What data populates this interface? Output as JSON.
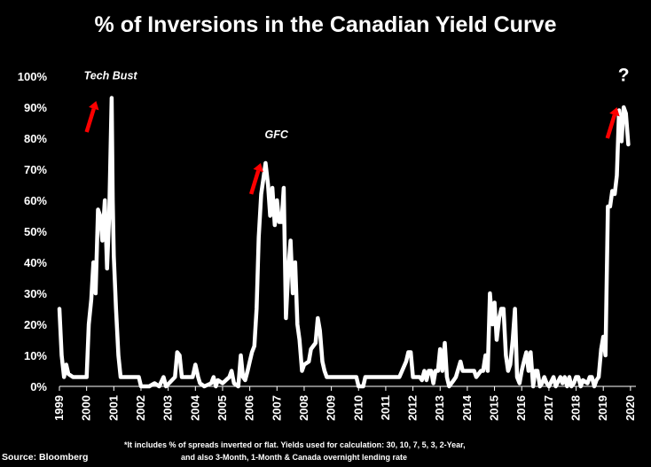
{
  "chart_data": {
    "type": "line",
    "title": "% of Inversions in the Canadian Yield Curve",
    "xlabel": "",
    "ylabel": "",
    "xlim": [
      1999,
      2020.2
    ],
    "ylim": [
      0,
      100
    ],
    "grid": false,
    "y_tick_labels": [
      "0%",
      "10%",
      "20%",
      "30%",
      "40%",
      "50%",
      "60%",
      "70%",
      "80%",
      "90%",
      "100%"
    ],
    "x_tick_labels": [
      "1999",
      "2000",
      "2001",
      "2002",
      "2003",
      "2004",
      "2005",
      "2006",
      "2007",
      "2008",
      "2009",
      "2010",
      "2011",
      "2012",
      "2013",
      "2014",
      "2015",
      "2016",
      "2017",
      "2018",
      "2019",
      "2020"
    ],
    "series": [
      {
        "color": "#ffffff",
        "points": [
          [
            1999.0,
            25
          ],
          [
            1999.08,
            10
          ],
          [
            1999.17,
            3
          ],
          [
            1999.25,
            7
          ],
          [
            1999.33,
            4
          ],
          [
            1999.5,
            3
          ],
          [
            1999.75,
            3
          ],
          [
            2000.0,
            3
          ],
          [
            2000.08,
            20
          ],
          [
            2000.17,
            28
          ],
          [
            2000.25,
            40
          ],
          [
            2000.33,
            30
          ],
          [
            2000.42,
            57
          ],
          [
            2000.5,
            55
          ],
          [
            2000.58,
            47
          ],
          [
            2000.67,
            60
          ],
          [
            2000.75,
            38
          ],
          [
            2000.83,
            55
          ],
          [
            2000.92,
            93
          ],
          [
            2000.96,
            60
          ],
          [
            2001.0,
            42
          ],
          [
            2001.08,
            25
          ],
          [
            2001.17,
            10
          ],
          [
            2001.25,
            3
          ],
          [
            2001.5,
            3
          ],
          [
            2001.75,
            3
          ],
          [
            2001.92,
            3
          ],
          [
            2002.0,
            0
          ],
          [
            2002.3,
            0
          ],
          [
            2002.5,
            1
          ],
          [
            2002.67,
            0
          ],
          [
            2002.83,
            3
          ],
          [
            2002.92,
            0
          ],
          [
            2003.25,
            3
          ],
          [
            2003.33,
            11
          ],
          [
            2003.42,
            10
          ],
          [
            2003.5,
            3
          ],
          [
            2003.75,
            3
          ],
          [
            2003.9,
            3
          ],
          [
            2004.0,
            7
          ],
          [
            2004.1,
            3
          ],
          [
            2004.17,
            1
          ],
          [
            2004.33,
            0
          ],
          [
            2004.58,
            1
          ],
          [
            2004.67,
            3
          ],
          [
            2004.75,
            0
          ],
          [
            2004.83,
            2
          ],
          [
            2005.0,
            1
          ],
          [
            2005.25,
            3
          ],
          [
            2005.33,
            5
          ],
          [
            2005.42,
            1
          ],
          [
            2005.58,
            0
          ],
          [
            2005.67,
            10
          ],
          [
            2005.75,
            3
          ],
          [
            2005.83,
            2
          ],
          [
            2005.92,
            5
          ],
          [
            2006.0,
            8
          ],
          [
            2006.08,
            11
          ],
          [
            2006.17,
            13
          ],
          [
            2006.25,
            25
          ],
          [
            2006.33,
            48
          ],
          [
            2006.42,
            62
          ],
          [
            2006.5,
            67
          ],
          [
            2006.58,
            72
          ],
          [
            2006.67,
            65
          ],
          [
            2006.75,
            55
          ],
          [
            2006.83,
            64
          ],
          [
            2006.92,
            52
          ],
          [
            2007.0,
            60
          ],
          [
            2007.08,
            53
          ],
          [
            2007.17,
            53
          ],
          [
            2007.25,
            64
          ],
          [
            2007.33,
            22
          ],
          [
            2007.42,
            38
          ],
          [
            2007.5,
            47
          ],
          [
            2007.58,
            30
          ],
          [
            2007.67,
            40
          ],
          [
            2007.75,
            20
          ],
          [
            2007.83,
            15
          ],
          [
            2007.92,
            5
          ],
          [
            2008.0,
            7
          ],
          [
            2008.17,
            8
          ],
          [
            2008.25,
            12
          ],
          [
            2008.42,
            14
          ],
          [
            2008.5,
            22
          ],
          [
            2008.58,
            18
          ],
          [
            2008.67,
            8
          ],
          [
            2008.75,
            5
          ],
          [
            2008.83,
            3
          ],
          [
            2009.0,
            3
          ],
          [
            2009.5,
            3
          ],
          [
            2009.75,
            3
          ],
          [
            2009.92,
            3
          ],
          [
            2010.0,
            0
          ],
          [
            2010.17,
            0
          ],
          [
            2010.25,
            3
          ],
          [
            2010.5,
            3
          ],
          [
            2010.75,
            3
          ],
          [
            2011.0,
            3
          ],
          [
            2011.25,
            3
          ],
          [
            2011.5,
            3
          ],
          [
            2011.75,
            8
          ],
          [
            2011.83,
            11
          ],
          [
            2011.92,
            11
          ],
          [
            2012.0,
            3
          ],
          [
            2012.25,
            3
          ],
          [
            2012.33,
            2
          ],
          [
            2012.42,
            5
          ],
          [
            2012.5,
            2
          ],
          [
            2012.58,
            5
          ],
          [
            2012.67,
            5
          ],
          [
            2012.75,
            1
          ],
          [
            2012.83,
            5
          ],
          [
            2012.92,
            5
          ],
          [
            2013.0,
            12
          ],
          [
            2013.08,
            5
          ],
          [
            2013.17,
            14
          ],
          [
            2013.25,
            3
          ],
          [
            2013.33,
            0
          ],
          [
            2013.5,
            2
          ],
          [
            2013.58,
            3
          ],
          [
            2013.75,
            8
          ],
          [
            2013.83,
            5
          ],
          [
            2014.0,
            5
          ],
          [
            2014.25,
            5
          ],
          [
            2014.33,
            3
          ],
          [
            2014.5,
            5
          ],
          [
            2014.58,
            5
          ],
          [
            2014.67,
            10
          ],
          [
            2014.75,
            5
          ],
          [
            2014.83,
            30
          ],
          [
            2014.92,
            20
          ],
          [
            2015.0,
            27
          ],
          [
            2015.08,
            15
          ],
          [
            2015.17,
            22
          ],
          [
            2015.25,
            25
          ],
          [
            2015.33,
            25
          ],
          [
            2015.42,
            10
          ],
          [
            2015.5,
            5
          ],
          [
            2015.58,
            7
          ],
          [
            2015.67,
            15
          ],
          [
            2015.75,
            25
          ],
          [
            2015.83,
            3
          ],
          [
            2015.92,
            1
          ],
          [
            2016.0,
            5
          ],
          [
            2016.08,
            8
          ],
          [
            2016.17,
            11
          ],
          [
            2016.25,
            5
          ],
          [
            2016.33,
            11
          ],
          [
            2016.42,
            0
          ],
          [
            2016.5,
            5
          ],
          [
            2016.58,
            5
          ],
          [
            2016.67,
            0
          ],
          [
            2016.75,
            1
          ],
          [
            2016.83,
            3
          ],
          [
            2016.92,
            1
          ],
          [
            2017.0,
            0
          ],
          [
            2017.17,
            3
          ],
          [
            2017.25,
            0
          ],
          [
            2017.42,
            3
          ],
          [
            2017.5,
            1
          ],
          [
            2017.58,
            3
          ],
          [
            2017.67,
            0
          ],
          [
            2017.75,
            3
          ],
          [
            2017.83,
            0
          ],
          [
            2017.92,
            1
          ],
          [
            2018.0,
            3
          ],
          [
            2018.08,
            3
          ],
          [
            2018.17,
            0
          ],
          [
            2018.25,
            2
          ],
          [
            2018.42,
            1
          ],
          [
            2018.5,
            3
          ],
          [
            2018.58,
            3
          ],
          [
            2018.67,
            0
          ],
          [
            2018.75,
            2
          ],
          [
            2018.83,
            3
          ],
          [
            2018.92,
            12
          ],
          [
            2019.0,
            16
          ],
          [
            2019.08,
            10
          ],
          [
            2019.17,
            58
          ],
          [
            2019.25,
            58
          ],
          [
            2019.33,
            63
          ],
          [
            2019.42,
            62
          ],
          [
            2019.5,
            68
          ],
          [
            2019.58,
            89
          ],
          [
            2019.67,
            79
          ],
          [
            2019.75,
            90
          ],
          [
            2019.83,
            88
          ],
          [
            2019.92,
            78
          ]
        ]
      }
    ],
    "annotations": [
      "Tech Bust",
      "GFC",
      "?"
    ]
  },
  "footnote": {
    "line1": "*It includes % of spreads inverted or flat. Yields used for calculation: 30, 10, 7, 5, 3, 2-Year,",
    "line2": "and also 3-Month, 1-Month & Canada overnight lending rate"
  },
  "source": "Source: Bloomberg",
  "colors": {
    "background": "#000000",
    "line": "#ffffff",
    "arrow": "#ff0000"
  }
}
